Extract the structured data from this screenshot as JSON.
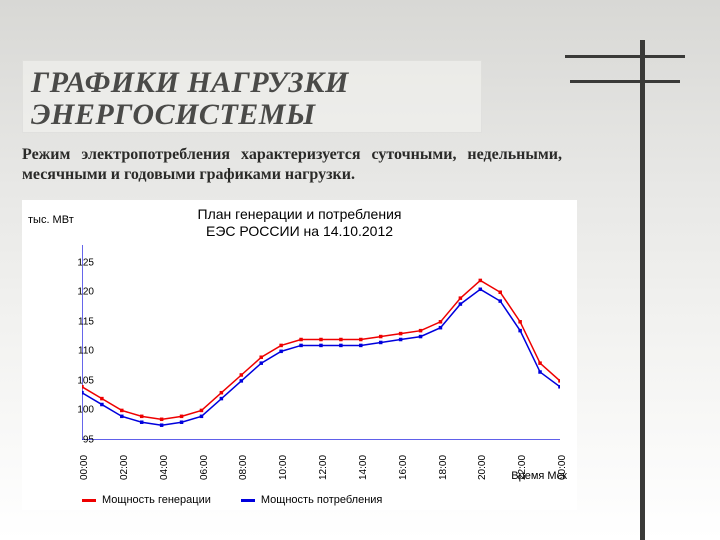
{
  "background": {
    "pole_color": "#3a3a38"
  },
  "heading": {
    "line1": "ГРАФИКИ НАГРУЗКИ",
    "line2": "ЭНЕРГОСИСТЕМЫ",
    "color": "#4a4a48",
    "fontsize": 30
  },
  "subtitle": "Режим электропотребления характеризуется суточными, недельными, месячными и годовыми графиками нагрузки.",
  "chart": {
    "type": "line",
    "ylabel": "тыс. МВт",
    "title_line1": "План генерации и потребления",
    "title_line2": "ЕЭС РОССИИ на 14.10.2012",
    "title_fontsize": 14,
    "xlabel": "Время Мск",
    "xlim": [
      0,
      24
    ],
    "ylim": [
      95,
      128
    ],
    "ytick_step": 5,
    "yticks": [
      95,
      100,
      105,
      110,
      115,
      120,
      125
    ],
    "xticks_hours": [
      0,
      1,
      2,
      3,
      4,
      5,
      6,
      7,
      8,
      9,
      10,
      11,
      12,
      13,
      14,
      15,
      16,
      17,
      18,
      19,
      20,
      21,
      22,
      23,
      24
    ],
    "xticks_labels": [
      "00:00",
      "",
      "02:00",
      "",
      "04:00",
      "",
      "06:00",
      "",
      "08:00",
      "",
      "10:00",
      "",
      "12:00",
      "",
      "14:00",
      "",
      "16:00",
      "",
      "18:00",
      "",
      "20:00",
      "",
      "22:00",
      "",
      "00:00"
    ],
    "axis_color": "#0000dd",
    "tick_color": "#0000dd",
    "grid": false,
    "background_color": "#ffffff",
    "marker_size": 2.5,
    "line_width": 1.5,
    "series": [
      {
        "name": "Мощность генерации",
        "color": "#ee0000",
        "marker": "square",
        "values": [
          104,
          102,
          100,
          99,
          98.5,
          99,
          100,
          103,
          106,
          109,
          111,
          112,
          112,
          112,
          112,
          112.5,
          113,
          113.5,
          115,
          119,
          122,
          120,
          115,
          108,
          105
        ]
      },
      {
        "name": "Мощность потребления",
        "color": "#0000dd",
        "marker": "square",
        "values": [
          103,
          101,
          99,
          98,
          97.5,
          98,
          99,
          102,
          105,
          108,
          110,
          111,
          111,
          111,
          111,
          111.5,
          112,
          112.5,
          114,
          118,
          120.5,
          118.5,
          113.5,
          106.5,
          104
        ]
      }
    ],
    "legend_position": "bottom"
  }
}
